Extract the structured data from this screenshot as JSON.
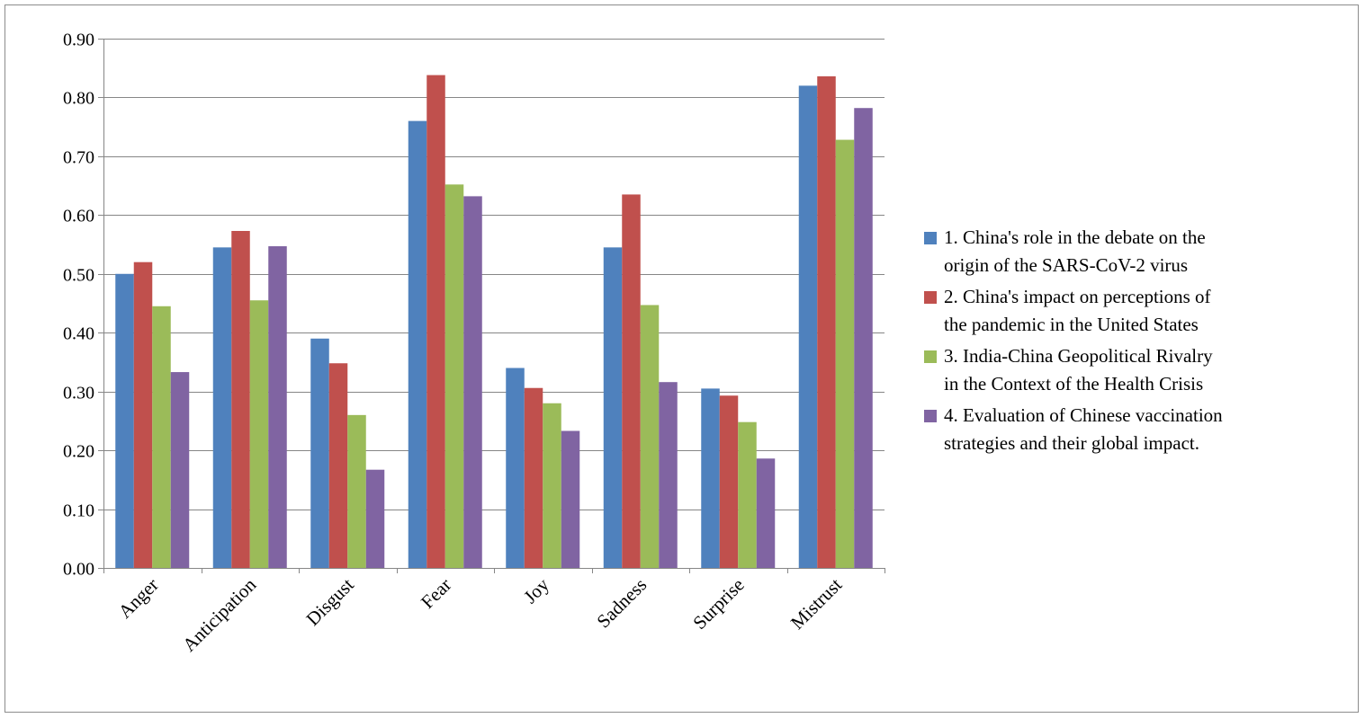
{
  "chart_data": {
    "type": "bar",
    "title": "",
    "xlabel": "",
    "ylabel": "",
    "ylim": [
      0,
      0.9
    ],
    "yticks": [
      "0.00",
      "0.10",
      "0.20",
      "0.30",
      "0.40",
      "0.50",
      "0.60",
      "0.70",
      "0.80",
      "0.90"
    ],
    "grid": true,
    "legend_position": "right",
    "categories": [
      "Anger",
      "Anticipation",
      "Disgust",
      "Fear",
      "Joy",
      "Sadness",
      "Surprise",
      "Mistrust"
    ],
    "series": [
      {
        "name": "1. China's role in the debate on the origin of the SARS-CoV-2 virus",
        "name_lines": [
          "1. China's role in the debate on the",
          "origin of the SARS-CoV-2 virus"
        ],
        "color": "#4F81BD",
        "values": [
          0.5,
          0.545,
          0.39,
          0.76,
          0.34,
          0.545,
          0.305,
          0.82
        ]
      },
      {
        "name": "2. China's impact on perceptions of the pandemic in the United States",
        "name_lines": [
          "2. China's impact on perceptions of",
          "the pandemic in the United States"
        ],
        "color": "#C0504D",
        "values": [
          0.52,
          0.573,
          0.348,
          0.838,
          0.306,
          0.635,
          0.293,
          0.836
        ]
      },
      {
        "name": "3. India-China Geopolitical Rivalry in the Context of the Health Crisis",
        "name_lines": [
          "3. India-China Geopolitical Rivalry",
          "in the Context of the Health Crisis"
        ],
        "color": "#9BBB59",
        "values": [
          0.445,
          0.455,
          0.26,
          0.652,
          0.28,
          0.447,
          0.248,
          0.728
        ]
      },
      {
        "name": "4. Evaluation of Chinese vaccination strategies and their global impact.",
        "name_lines": [
          "4. Evaluation of Chinese vaccination",
          "strategies and their global impact."
        ],
        "color": "#8064A2",
        "values": [
          0.333,
          0.547,
          0.167,
          0.632,
          0.233,
          0.316,
          0.186,
          0.782
        ]
      }
    ]
  }
}
